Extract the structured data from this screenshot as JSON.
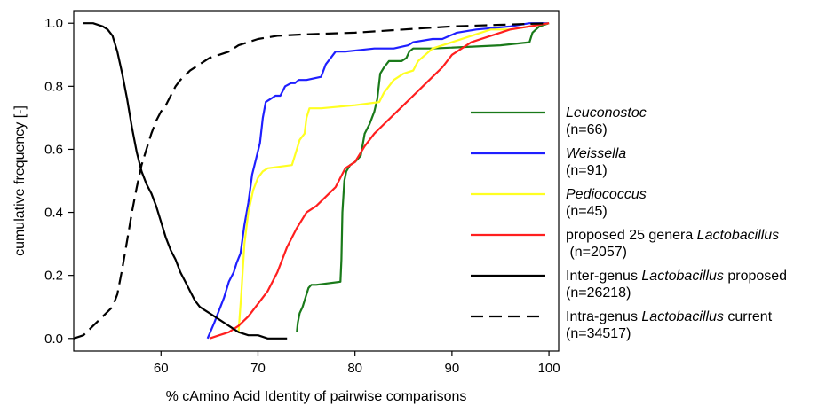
{
  "chart_data": {
    "type": "line",
    "title": "",
    "xlabel": "% cAmino Acid Identity of pairwise comparisons",
    "ylabel": "cumulative frequency [-]",
    "xlim": [
      51,
      101
    ],
    "ylim": [
      -0.04,
      1.04
    ],
    "xticks": [
      60,
      70,
      80,
      90,
      100
    ],
    "yticks": [
      0.0,
      0.2,
      0.4,
      0.6,
      0.8,
      1.0
    ],
    "xtick_labels": [
      "60",
      "70",
      "80",
      "90",
      "100"
    ],
    "ytick_labels": [
      "0.0",
      "0.2",
      "0.4",
      "0.6",
      "0.8",
      "1.0"
    ],
    "grid": false,
    "legend_position": "right",
    "series": [
      {
        "name_parts": [
          {
            "text": "Leuconostoc",
            "italic": true
          }
        ],
        "count": "(n=66)",
        "color": "#1a7a1a",
        "dash": "solid",
        "x": [
          74.0,
          74.1,
          74.3,
          74.6,
          74.8,
          75.0,
          75.2,
          75.5,
          75.8,
          76.0,
          78.5,
          78.6,
          78.7,
          78.9,
          79.1,
          79.5,
          80.0,
          80.6,
          81.0,
          81.5,
          82.0,
          82.3,
          82.6,
          83.0,
          83.5,
          84.0,
          84.8,
          85.3,
          85.6,
          86.0,
          88.0,
          95.0,
          98.0,
          98.3,
          99.0,
          100.0
        ],
        "y": [
          0.02,
          0.05,
          0.08,
          0.1,
          0.12,
          0.14,
          0.16,
          0.17,
          0.17,
          0.17,
          0.18,
          0.25,
          0.4,
          0.5,
          0.53,
          0.55,
          0.56,
          0.58,
          0.65,
          0.68,
          0.72,
          0.76,
          0.84,
          0.86,
          0.88,
          0.88,
          0.88,
          0.89,
          0.91,
          0.92,
          0.92,
          0.93,
          0.94,
          0.97,
          0.99,
          1.0
        ]
      },
      {
        "name_parts": [
          {
            "text": "Weissella",
            "italic": true
          }
        ],
        "count": "(n=91)",
        "color": "#1f1fff",
        "dash": "solid",
        "x": [
          64.8,
          65.5,
          66.0,
          66.5,
          67.0,
          67.5,
          67.8,
          68.2,
          68.6,
          69.0,
          69.4,
          69.8,
          70.2,
          70.5,
          70.8,
          71.3,
          71.8,
          72.3,
          72.8,
          73.4,
          73.8,
          74.2,
          75.0,
          76.5,
          77.0,
          77.5,
          78.0,
          79.0,
          82.0,
          84.0,
          85.5,
          86.0,
          88.0,
          89.0,
          90.5,
          92.5,
          96.0,
          98.0,
          100.0
        ],
        "y": [
          0.0,
          0.05,
          0.09,
          0.13,
          0.18,
          0.21,
          0.24,
          0.27,
          0.36,
          0.43,
          0.52,
          0.57,
          0.62,
          0.7,
          0.75,
          0.76,
          0.77,
          0.77,
          0.8,
          0.81,
          0.81,
          0.82,
          0.82,
          0.83,
          0.87,
          0.89,
          0.91,
          0.91,
          0.92,
          0.92,
          0.93,
          0.94,
          0.95,
          0.95,
          0.97,
          0.98,
          0.99,
          1.0,
          1.0
        ]
      },
      {
        "name_parts": [
          {
            "text": "Pediococcus",
            "italic": true
          }
        ],
        "count": "(n=45)",
        "color": "#ffff22",
        "dash": "solid",
        "x": [
          68.0,
          68.3,
          68.6,
          69.0,
          69.5,
          70.0,
          70.5,
          71.0,
          73.5,
          74.0,
          74.3,
          74.8,
          75.0,
          75.3,
          76.5,
          80.0,
          82.5,
          83.0,
          84.0,
          85.0,
          86.0,
          86.5,
          88.0,
          90.0,
          92.0,
          94.0,
          96.0,
          98.0,
          100.0
        ],
        "y": [
          0.02,
          0.15,
          0.3,
          0.4,
          0.47,
          0.51,
          0.53,
          0.54,
          0.55,
          0.6,
          0.63,
          0.65,
          0.7,
          0.73,
          0.73,
          0.74,
          0.75,
          0.78,
          0.82,
          0.84,
          0.85,
          0.88,
          0.92,
          0.94,
          0.96,
          0.98,
          0.98,
          0.99,
          1.0
        ]
      },
      {
        "name_parts": [
          {
            "text": "proposed 25 genera ",
            "italic": false
          },
          {
            "text": "Lactobacillus",
            "italic": true
          }
        ],
        "count": " (n=2057)",
        "color": "#ff1f1f",
        "dash": "solid",
        "x": [
          65.0,
          66.0,
          67.0,
          68.0,
          69.0,
          70.0,
          71.0,
          72.0,
          73.0,
          74.0,
          75.0,
          76.0,
          77.0,
          78.0,
          79.0,
          80.0,
          81.0,
          82.0,
          83.0,
          84.0,
          85.0,
          86.0,
          87.0,
          88.0,
          89.0,
          90.0,
          91.0,
          92.0,
          94.0,
          96.0,
          98.0,
          100.0
        ],
        "y": [
          0.0,
          0.01,
          0.02,
          0.04,
          0.07,
          0.11,
          0.15,
          0.21,
          0.29,
          0.35,
          0.4,
          0.42,
          0.45,
          0.48,
          0.54,
          0.56,
          0.61,
          0.65,
          0.68,
          0.71,
          0.74,
          0.77,
          0.8,
          0.83,
          0.86,
          0.9,
          0.92,
          0.94,
          0.96,
          0.98,
          0.99,
          1.0
        ]
      },
      {
        "name_parts": [
          {
            "text": "Inter-genus ",
            "italic": false
          },
          {
            "text": "Lactobacillus",
            "italic": true
          },
          {
            "text": " proposed",
            "italic": false
          }
        ],
        "count": "(n=26218)",
        "color": "#000000",
        "dash": "solid",
        "x": [
          52.0,
          53.0,
          54.0,
          54.5,
          55.0,
          55.5,
          56.0,
          56.5,
          57.0,
          57.5,
          58.0,
          58.5,
          59.0,
          59.5,
          60.0,
          60.5,
          61.0,
          61.5,
          62.0,
          62.5,
          63.0,
          63.5,
          64.0,
          64.5,
          65.0,
          66.0,
          67.0,
          68.0,
          69.0,
          70.0,
          71.0,
          73.0
        ],
        "y": [
          1.0,
          1.0,
          0.99,
          0.98,
          0.96,
          0.91,
          0.84,
          0.76,
          0.67,
          0.59,
          0.53,
          0.49,
          0.46,
          0.42,
          0.37,
          0.32,
          0.28,
          0.25,
          0.21,
          0.18,
          0.15,
          0.12,
          0.1,
          0.09,
          0.08,
          0.06,
          0.04,
          0.02,
          0.01,
          0.01,
          0.0,
          0.0
        ]
      },
      {
        "name_parts": [
          {
            "text": "Intra-genus ",
            "italic": false
          },
          {
            "text": "Lactobacillus",
            "italic": true
          },
          {
            "text": " current",
            "italic": false
          }
        ],
        "count": "(n=34517)",
        "color": "#000000",
        "dash": "dashed",
        "x": [
          51.0,
          52.0,
          53.0,
          54.0,
          55.0,
          55.5,
          56.0,
          56.5,
          57.0,
          57.5,
          58.0,
          58.5,
          59.0,
          59.5,
          60.0,
          60.5,
          61.0,
          61.5,
          62.0,
          63.0,
          64.0,
          65.0,
          66.0,
          67.0,
          68.0,
          70.0,
          72.0,
          75.0,
          80.0,
          85.0,
          90.0,
          95.0,
          100.0
        ],
        "y": [
          0.0,
          0.01,
          0.04,
          0.07,
          0.1,
          0.14,
          0.22,
          0.31,
          0.4,
          0.48,
          0.55,
          0.6,
          0.65,
          0.69,
          0.72,
          0.74,
          0.77,
          0.8,
          0.82,
          0.85,
          0.87,
          0.89,
          0.9,
          0.91,
          0.93,
          0.95,
          0.96,
          0.965,
          0.97,
          0.98,
          0.99,
          0.995,
          1.0
        ]
      }
    ]
  }
}
